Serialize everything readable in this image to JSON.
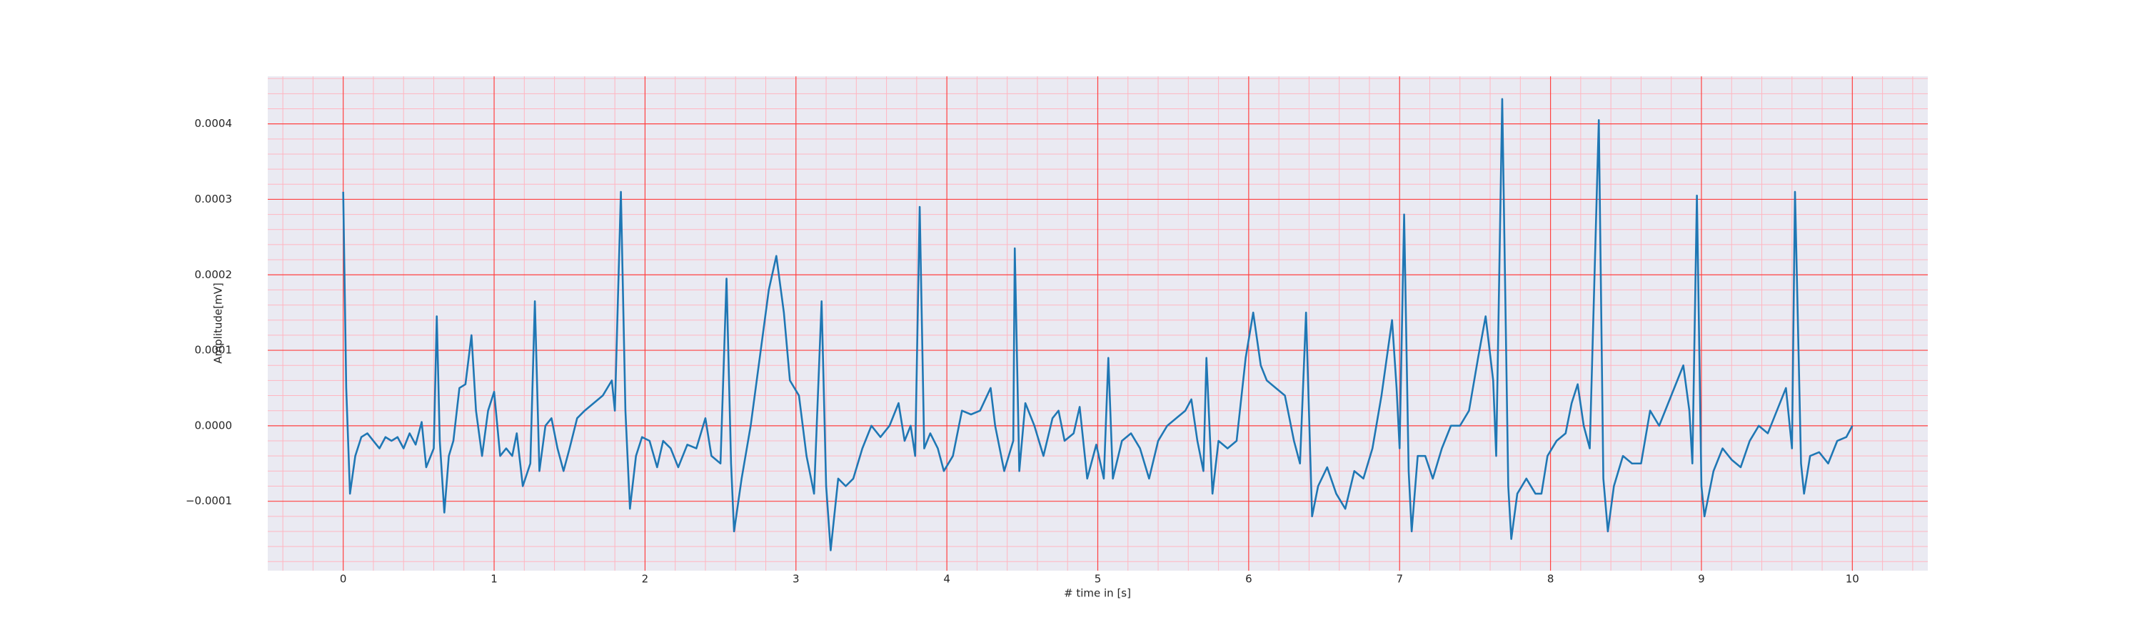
{
  "chart_data": {
    "type": "line",
    "xlabel": "# time in [s]",
    "ylabel": "Amplitude[mV]",
    "color": "#1f77b4",
    "grid": true,
    "minor_grid": true,
    "minor_divisions": 5,
    "xlim": [
      -0.5,
      10.5
    ],
    "xticks": [
      0,
      1,
      2,
      3,
      4,
      5,
      6,
      7,
      8,
      9,
      10
    ],
    "ylim": [
      -0.000192,
      0.000463
    ],
    "yticks": [
      {
        "value": -0.0001,
        "label": "−0.0001"
      },
      {
        "value": 0,
        "label": "0.0000"
      },
      0.0001,
      0.0002,
      0.0003,
      0.0004
    ],
    "x": [
      0.0,
      0.02,
      0.045,
      0.08,
      0.12,
      0.16,
      0.2,
      0.24,
      0.28,
      0.32,
      0.36,
      0.4,
      0.44,
      0.48,
      0.52,
      0.55,
      0.6,
      0.62,
      0.64,
      0.67,
      0.7,
      0.73,
      0.77,
      0.81,
      0.85,
      0.88,
      0.92,
      0.96,
      1.0,
      1.04,
      1.08,
      1.12,
      1.15,
      1.19,
      1.24,
      1.27,
      1.3,
      1.34,
      1.38,
      1.42,
      1.46,
      1.5,
      1.55,
      1.6,
      1.66,
      1.72,
      1.78,
      1.8,
      1.84,
      1.87,
      1.9,
      1.94,
      1.98,
      2.03,
      2.08,
      2.12,
      2.17,
      2.22,
      2.28,
      2.34,
      2.4,
      2.44,
      2.5,
      2.54,
      2.57,
      2.59,
      2.64,
      2.7,
      2.76,
      2.82,
      2.87,
      2.92,
      2.96,
      3.02,
      3.07,
      3.12,
      3.17,
      3.2,
      3.23,
      3.28,
      3.33,
      3.38,
      3.44,
      3.5,
      3.56,
      3.62,
      3.68,
      3.72,
      3.76,
      3.79,
      3.82,
      3.85,
      3.89,
      3.94,
      3.98,
      4.04,
      4.1,
      4.16,
      4.22,
      4.29,
      4.32,
      4.38,
      4.44,
      4.45,
      4.48,
      4.52,
      4.58,
      4.64,
      4.7,
      4.74,
      4.78,
      4.84,
      4.88,
      4.93,
      4.99,
      5.04,
      5.07,
      5.1,
      5.16,
      5.22,
      5.28,
      5.34,
      5.4,
      5.46,
      5.52,
      5.58,
      5.62,
      5.66,
      5.7,
      5.72,
      5.76,
      5.8,
      5.86,
      5.92,
      5.98,
      6.03,
      6.08,
      6.12,
      6.18,
      6.24,
      6.3,
      6.34,
      6.38,
      6.42,
      6.46,
      6.52,
      6.58,
      6.64,
      6.7,
      6.76,
      6.82,
      6.88,
      6.95,
      6.98,
      7.0,
      7.03,
      7.06,
      7.08,
      7.12,
      7.17,
      7.22,
      7.28,
      7.34,
      7.4,
      7.46,
      7.52,
      7.57,
      7.62,
      7.64,
      7.68,
      7.72,
      7.74,
      7.78,
      7.84,
      7.9,
      7.94,
      7.98,
      8.04,
      8.1,
      8.14,
      8.18,
      8.22,
      8.26,
      8.32,
      8.35,
      8.38,
      8.42,
      8.48,
      8.54,
      8.6,
      8.66,
      8.72,
      8.78,
      8.84,
      8.88,
      8.92,
      8.94,
      8.97,
      9.0,
      9.02,
      9.08,
      9.14,
      9.2,
      9.26,
      9.32,
      9.38,
      9.44,
      9.5,
      9.56,
      9.6,
      9.62,
      9.66,
      9.68,
      9.72,
      9.78,
      9.84,
      9.9,
      9.96,
      10.0
    ],
    "values": [
      0.00031,
      5e-05,
      -9e-05,
      -4e-05,
      -1.5e-05,
      -1e-05,
      -2e-05,
      -3e-05,
      -1.5e-05,
      -2e-05,
      -1.5e-05,
      -3e-05,
      -1e-05,
      -2.5e-05,
      5e-06,
      -5.5e-05,
      -3e-05,
      0.000145,
      -2e-05,
      -0.000115,
      -4e-05,
      -2e-05,
      5e-05,
      5.5e-05,
      0.00012,
      2e-05,
      -4e-05,
      2e-05,
      4.5e-05,
      -4e-05,
      -3e-05,
      -4e-05,
      -1e-05,
      -8e-05,
      -5e-05,
      0.000165,
      -6e-05,
      0,
      1e-05,
      -3e-05,
      -6e-05,
      -3e-05,
      1e-05,
      2e-05,
      3e-05,
      4e-05,
      6e-05,
      2e-05,
      0.00031,
      2e-05,
      -0.00011,
      -4e-05,
      -1.5e-05,
      -2e-05,
      -5.5e-05,
      -2e-05,
      -3e-05,
      -5.5e-05,
      -2.5e-05,
      -3e-05,
      1e-05,
      -4e-05,
      -5e-05,
      0.000195,
      -5e-05,
      -0.00014,
      -7e-05,
      0,
      9e-05,
      0.00018,
      0.000225,
      0.00015,
      6e-05,
      4e-05,
      -4e-05,
      -9e-05,
      0.000165,
      -8e-05,
      -0.000165,
      -7e-05,
      -8e-05,
      -7e-05,
      -3e-05,
      0,
      -1.5e-05,
      0,
      3e-05,
      -2e-05,
      0,
      -4e-05,
      0.00029,
      -3e-05,
      -1e-05,
      -3e-05,
      -6e-05,
      -4e-05,
      2e-05,
      1.5e-05,
      2e-05,
      5e-05,
      0,
      -6e-05,
      -2e-05,
      0.000235,
      -6e-05,
      3e-05,
      0,
      -4e-05,
      1e-05,
      2e-05,
      -2e-05,
      -1e-05,
      2.5e-05,
      -7e-05,
      -2.5e-05,
      -7e-05,
      9e-05,
      -7e-05,
      -2e-05,
      -1e-05,
      -3e-05,
      -7e-05,
      -2e-05,
      0,
      1e-05,
      2e-05,
      3.5e-05,
      -2e-05,
      -6e-05,
      9e-05,
      -9e-05,
      -2e-05,
      -3e-05,
      -2e-05,
      9e-05,
      0.00015,
      8e-05,
      6e-05,
      5e-05,
      4e-05,
      -2e-05,
      -5e-05,
      0.00015,
      -0.00012,
      -8e-05,
      -5.5e-05,
      -9e-05,
      -0.00011,
      -6e-05,
      -7e-05,
      -3e-05,
      4e-05,
      0.00014,
      5e-05,
      -3e-05,
      0.00028,
      -6e-05,
      -0.00014,
      -4e-05,
      -4e-05,
      -7e-05,
      -3e-05,
      0,
      0,
      2e-05,
      9e-05,
      0.000145,
      6e-05,
      -4e-05,
      0.000433,
      -8e-05,
      -0.00015,
      -9e-05,
      -7e-05,
      -9e-05,
      -9e-05,
      -4e-05,
      -2e-05,
      -1e-05,
      3e-05,
      5.5e-05,
      0,
      -3e-05,
      0.000405,
      -7e-05,
      -0.00014,
      -8e-05,
      -4e-05,
      -5e-05,
      -5e-05,
      2e-05,
      0,
      3e-05,
      6e-05,
      8e-05,
      2e-05,
      -5e-05,
      0.000305,
      -8e-05,
      -0.00012,
      -6e-05,
      -3e-05,
      -4.5e-05,
      -5.5e-05,
      -2e-05,
      0,
      -1e-05,
      2e-05,
      5e-05,
      -3e-05,
      0.00031,
      -5e-05,
      -9e-05,
      -4e-05,
      -3.5e-05,
      -5e-05,
      -2e-05,
      -1.5e-05,
      0
    ]
  }
}
